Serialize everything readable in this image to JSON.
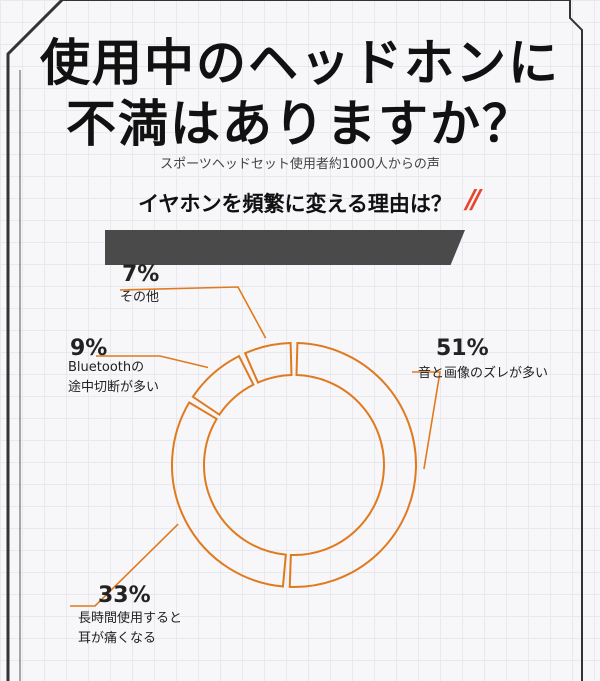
{
  "title": {
    "line1": "使用中のヘッドホンに",
    "line2": "不満はありますか？"
  },
  "subtitle": "スポーツヘッドセット使用者約1000人からの声",
  "question": "イヤホンを頻繁に変える理由は？",
  "accent_color": "#e07a1f",
  "chart_data": {
    "type": "pie",
    "title": "イヤホンを頻繁に変える理由は？",
    "categories": [
      "音と画像のズレが多い",
      "長時間使用すると耳が痛くなる",
      "Bluetoothの途中切断が多い",
      "その他"
    ],
    "values": [
      51,
      33,
      9,
      7
    ],
    "value_labels": [
      "51%",
      "33%",
      "9%",
      "7%"
    ],
    "labels": [
      {
        "lines": [
          "音と画像のズレが多い"
        ]
      },
      {
        "lines": [
          "長時間使用すると",
          "耳が痛くなる"
        ]
      },
      {
        "lines": [
          "Bluetoothの",
          "途中切断が多い"
        ]
      },
      {
        "lines": [
          "その他"
        ]
      }
    ]
  }
}
